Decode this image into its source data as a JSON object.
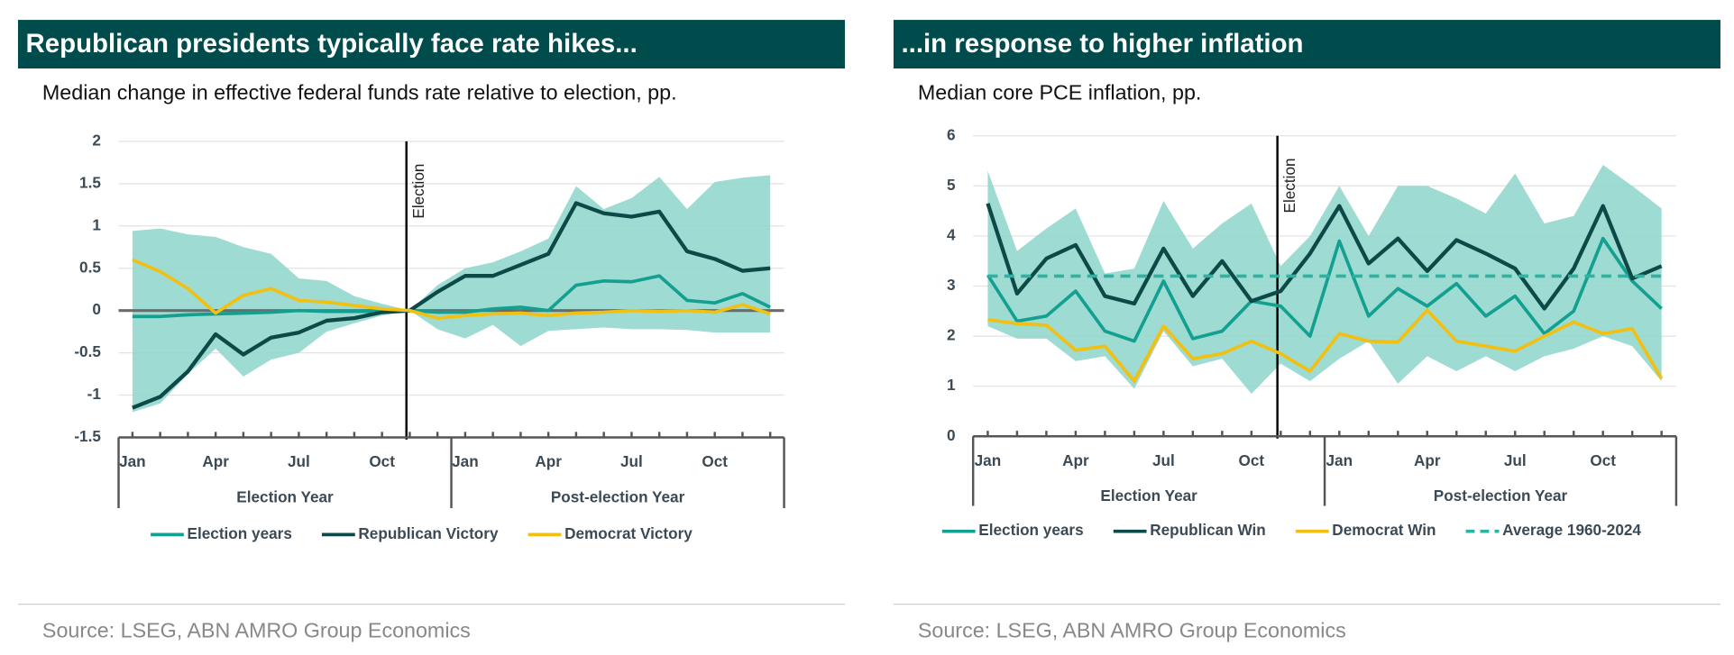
{
  "chart_data": [
    {
      "type": "line",
      "title": "Republican presidents typically face rate hikes...",
      "subtitle": "Median change in effective federal funds rate relative to election, pp.",
      "source": "Source:  LSEG, ABN AMRO Group Economics",
      "categories": [
        "Jan",
        null,
        null,
        "Apr",
        null,
        null,
        "Jul",
        null,
        null,
        "Oct",
        null,
        null,
        "Jan",
        null,
        null,
        "Apr",
        null,
        null,
        "Jul",
        null,
        null,
        "Oct",
        null,
        null
      ],
      "groups": [
        "Election Year",
        "Post-election Year"
      ],
      "annotation": {
        "label": "Election",
        "x": 10
      },
      "ylim": [
        -1.5,
        2
      ],
      "yticks": [
        2,
        1.5,
        1,
        0.5,
        0,
        -0.5,
        -1,
        -1.5
      ],
      "grid": true,
      "zero_line": true,
      "range": {
        "color": "#93d7cd",
        "high": [
          0.94,
          0.97,
          0.9,
          0.87,
          0.75,
          0.67,
          0.38,
          0.35,
          0.17,
          0.08,
          0,
          0.3,
          0.5,
          0.57,
          0.7,
          0.85,
          1.47,
          1.2,
          1.33,
          1.58,
          1.2,
          1.52,
          1.57,
          1.6
        ],
        "low": [
          -1.2,
          -1.1,
          -0.75,
          -0.45,
          -0.78,
          -0.58,
          -0.5,
          -0.25,
          -0.15,
          -0.06,
          0,
          -0.22,
          -0.33,
          -0.17,
          -0.42,
          -0.24,
          -0.22,
          -0.2,
          -0.22,
          -0.22,
          -0.23,
          -0.26,
          -0.26,
          -0.26
        ]
      },
      "series": [
        {
          "name": "Election years",
          "color": "#14a090",
          "values": [
            -0.07,
            -0.07,
            -0.05,
            -0.04,
            -0.03,
            -0.02,
            0,
            -0.01,
            -0.01,
            -0.01,
            0,
            -0.02,
            -0.02,
            0.02,
            0.04,
            0,
            0.3,
            0.35,
            0.34,
            0.41,
            0.12,
            0.09,
            0.2,
            0.04
          ]
        },
        {
          "name": "Republican Victory",
          "color": "#0d4a47",
          "values": [
            -1.15,
            -1.02,
            -0.72,
            -0.28,
            -0.52,
            -0.32,
            -0.26,
            -0.12,
            -0.09,
            -0.02,
            0,
            0.22,
            0.41,
            0.41,
            0.54,
            0.67,
            1.27,
            1.15,
            1.11,
            1.17,
            0.7,
            0.61,
            0.47,
            0.5
          ]
        },
        {
          "name": "Democrat Victory",
          "color": "#f2c012",
          "values": [
            0.6,
            0.46,
            0.26,
            -0.03,
            0.18,
            0.26,
            0.12,
            0.1,
            0.06,
            0.02,
            0,
            -0.09,
            -0.06,
            -0.04,
            -0.03,
            -0.06,
            -0.03,
            -0.02,
            0,
            -0.01,
            0,
            -0.02,
            0.07,
            -0.04
          ]
        }
      ]
    },
    {
      "type": "line",
      "title": "...in response to higher inflation",
      "subtitle": "Median core PCE inflation, pp.",
      "source": "Source: LSEG, ABN AMRO Group Economics",
      "categories": [
        "Jan",
        null,
        null,
        "Apr",
        null,
        null,
        "Jul",
        null,
        null,
        "Oct",
        null,
        null,
        "Jan",
        null,
        null,
        "Apr",
        null,
        null,
        "Jul",
        null,
        null,
        "Oct",
        null,
        null
      ],
      "groups": [
        "Election Year",
        "Post-election Year"
      ],
      "annotation": {
        "label": "Election",
        "x": 10
      },
      "ylim": [
        0,
        6
      ],
      "yticks": [
        6,
        5,
        4,
        3,
        2,
        1,
        0
      ],
      "grid": true,
      "zero_line": false,
      "range": {
        "color": "#93d7cd",
        "high": [
          5.3,
          3.7,
          4.15,
          4.55,
          3.25,
          3.35,
          4.7,
          3.75,
          4.25,
          4.65,
          3.4,
          4.0,
          5.0,
          4.0,
          5.0,
          5.0,
          4.75,
          4.45,
          5.25,
          4.25,
          4.4,
          5.42,
          5.0,
          4.55
        ],
        "low": [
          2.2,
          1.95,
          1.95,
          1.5,
          1.6,
          0.95,
          2.1,
          1.4,
          1.55,
          0.85,
          1.45,
          1.1,
          1.55,
          1.9,
          1.05,
          1.6,
          1.3,
          1.6,
          1.3,
          1.6,
          1.75,
          2.0,
          1.8,
          1.1
        ]
      },
      "series": [
        {
          "name": "Election years",
          "color": "#14a090",
          "values": [
            3.22,
            2.3,
            2.4,
            2.9,
            2.1,
            1.9,
            3.1,
            1.95,
            2.1,
            2.7,
            2.6,
            2.0,
            3.9,
            2.4,
            2.95,
            2.6,
            3.05,
            2.4,
            2.8,
            2.05,
            2.5,
            3.95,
            3.1,
            2.55
          ]
        },
        {
          "name": "Republican Win",
          "color": "#0d4a47",
          "values": [
            4.65,
            2.85,
            3.55,
            3.82,
            2.8,
            2.65,
            3.75,
            2.8,
            3.5,
            2.7,
            2.9,
            3.65,
            4.6,
            3.45,
            3.95,
            3.3,
            3.92,
            3.65,
            3.35,
            2.55,
            3.35,
            4.6,
            3.15,
            3.4
          ]
        },
        {
          "name": "Democrat Win",
          "color": "#f2c012",
          "values": [
            2.33,
            2.25,
            2.22,
            1.72,
            1.8,
            1.1,
            2.2,
            1.55,
            1.65,
            1.9,
            1.65,
            1.3,
            2.05,
            1.9,
            1.88,
            2.52,
            1.9,
            1.8,
            1.7,
            2.0,
            2.28,
            2.05,
            2.15,
            1.15
          ]
        },
        {
          "name": "Average 1960-2024",
          "color": "#2bb3a3",
          "dashed": true,
          "values": [
            3.2,
            3.2,
            3.2,
            3.2,
            3.2,
            3.2,
            3.2,
            3.2,
            3.2,
            3.2,
            3.2,
            3.2,
            3.2,
            3.2,
            3.2,
            3.2,
            3.2,
            3.2,
            3.2,
            3.2,
            3.2,
            3.2,
            3.2,
            3.2
          ]
        }
      ]
    }
  ]
}
